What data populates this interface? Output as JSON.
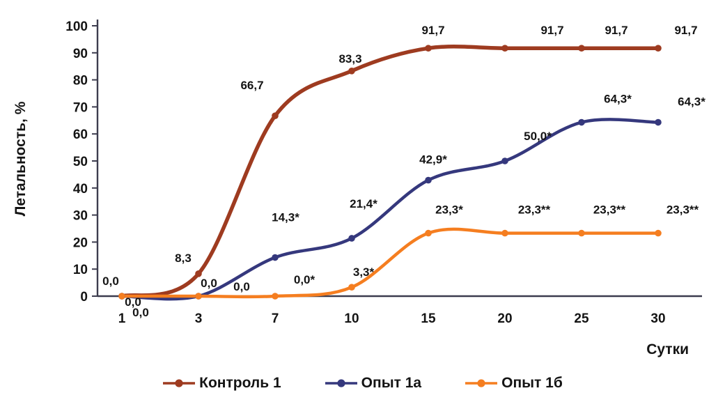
{
  "page": {
    "background": "#ffffff"
  },
  "chart_data": {
    "type": "line",
    "title": "",
    "ylabel": "Летальность, %",
    "xlabel": "Сутки",
    "categories": [
      "1",
      "3",
      "7",
      "10",
      "15",
      "20",
      "25",
      "30"
    ],
    "ylim": [
      0,
      100
    ],
    "yticks": [
      0,
      10,
      20,
      30,
      40,
      50,
      60,
      70,
      80,
      90,
      100
    ],
    "grid": false,
    "legend_position": "bottom",
    "axis_color": "#3c3c4e",
    "text_color": "#141414",
    "series": [
      {
        "name": "Контроль 1",
        "color": "#9E3B20",
        "values": [
          0,
          8.3,
          66.7,
          83.3,
          91.7,
          91.7,
          91.7,
          91.7
        ],
        "labels": [
          "0,0",
          "8,3",
          "66,7",
          "83,3",
          "91,7",
          "91,7",
          "91,7",
          "91,7"
        ],
        "label_offsets": [
          [
            -16,
            -16
          ],
          [
            -22,
            -17
          ],
          [
            -33,
            -38
          ],
          [
            -2,
            -12
          ],
          [
            7,
            -20
          ],
          [
            68,
            -20
          ],
          [
            50,
            -20
          ],
          [
            40,
            -20
          ]
        ]
      },
      {
        "name": "Опыт 1а",
        "color": "#35387D",
        "values": [
          0,
          0,
          14.3,
          21.4,
          42.9,
          50.0,
          64.3,
          64.3
        ],
        "labels": [
          "0,0",
          "0,0",
          "14,3*",
          "21,4*",
          "42,9*",
          "50,0*",
          "64,3*",
          "64,3*"
        ],
        "label_offsets": [
          [
            16,
            14
          ],
          [
            15,
            -13
          ],
          [
            15,
            -52
          ],
          [
            17,
            -44
          ],
          [
            7,
            -24
          ],
          [
            47,
            -30
          ],
          [
            52,
            -28
          ],
          [
            48,
            -24
          ]
        ]
      },
      {
        "name": "Опыт 1б",
        "color": "#F57E20",
        "values": [
          0,
          0,
          0,
          3.3,
          23.3,
          23.3,
          23.3,
          23.3
        ],
        "labels": [
          "0,0",
          "0,0",
          "0,0*",
          "3,3*",
          "23,3*",
          "23,3**",
          "23,3**",
          "23,3**"
        ],
        "label_offsets": [
          [
            27,
            29
          ],
          [
            62,
            -8
          ],
          [
            42,
            -18
          ],
          [
            17,
            -16
          ],
          [
            30,
            -28
          ],
          [
            42,
            -28
          ],
          [
            40,
            -28
          ],
          [
            35,
            -28
          ]
        ]
      }
    ]
  }
}
